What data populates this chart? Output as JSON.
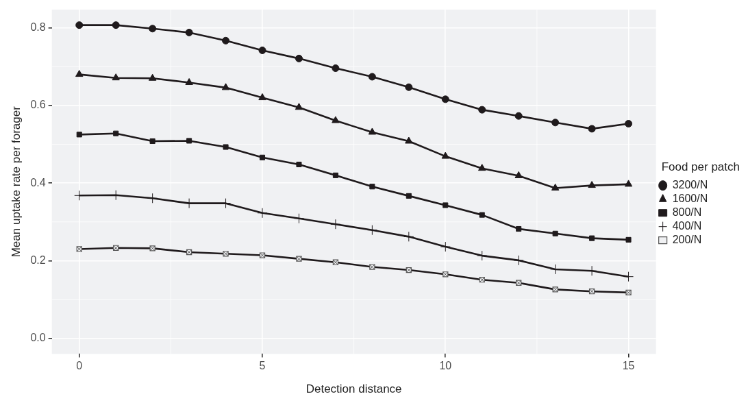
{
  "chart_data": {
    "type": "line",
    "xlabel": "Detection distance",
    "ylabel": "Mean uptake rate per forager",
    "legend_title": "Food per patch",
    "legend": "right",
    "grid": true,
    "x": [
      0,
      1,
      2,
      3,
      4,
      5,
      6,
      7,
      8,
      9,
      10,
      11,
      12,
      13,
      14,
      15
    ],
    "xlim": [
      -0.75,
      15.75
    ],
    "xticks": [
      0,
      5,
      10,
      15
    ],
    "ylim": [
      -0.04,
      0.847
    ],
    "yticks": [
      {
        "value": 0,
        "label": "0.0"
      },
      {
        "value": 0.2,
        "label": "0.2"
      },
      {
        "value": 0.4,
        "label": "0.4"
      },
      {
        "value": 0.6,
        "label": "0.6"
      },
      {
        "value": 0.8,
        "label": "0.8"
      }
    ],
    "series": [
      {
        "name": "3200/N",
        "color": "#1f1a1c",
        "marker": "circle",
        "values": [
          0.807,
          0.807,
          0.798,
          0.788,
          0.767,
          0.742,
          0.721,
          0.696,
          0.674,
          0.647,
          0.616,
          0.589,
          0.573,
          0.556,
          0.54,
          0.553
        ]
      },
      {
        "name": "1600/N",
        "color": "#1f1a1c",
        "marker": "triangle",
        "values": [
          0.68,
          0.671,
          0.67,
          0.659,
          0.646,
          0.62,
          0.595,
          0.561,
          0.531,
          0.508,
          0.469,
          0.438,
          0.419,
          0.387,
          0.394,
          0.397
        ]
      },
      {
        "name": "800/N",
        "color": "#1f1a1c",
        "marker": "square",
        "values": [
          0.525,
          0.528,
          0.508,
          0.509,
          0.493,
          0.466,
          0.448,
          0.42,
          0.391,
          0.367,
          0.343,
          0.318,
          0.282,
          0.27,
          0.258,
          0.254
        ]
      },
      {
        "name": "400/N",
        "color": "#1f1a1c",
        "marker": "cross",
        "values": [
          0.368,
          0.369,
          0.361,
          0.348,
          0.348,
          0.323,
          0.309,
          0.294,
          0.279,
          0.262,
          0.236,
          0.213,
          0.201,
          0.178,
          0.174,
          0.159
        ]
      },
      {
        "name": "200/N",
        "color": "#1f1a1c",
        "marker": "square",
        "values": [
          0.23,
          0.233,
          0.232,
          0.222,
          0.218,
          0.214,
          0.205,
          0.196,
          0.184,
          0.176,
          0.165,
          0.151,
          0.143,
          0.126,
          0.121,
          0.118
        ]
      }
    ]
  }
}
